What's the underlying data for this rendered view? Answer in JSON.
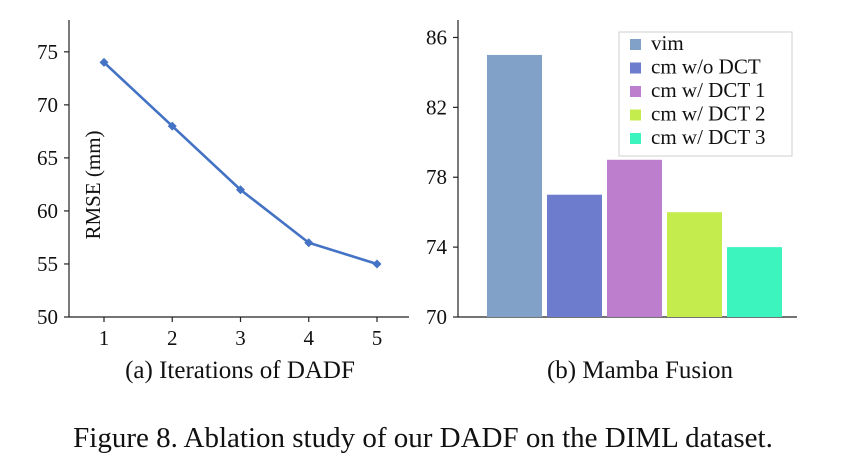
{
  "caption": "Figure 8. Ablation study of our DADF on the DIML dataset.",
  "chart_data": [
    {
      "type": "line",
      "title": "(a) Iterations of DADF",
      "xlabel": "",
      "ylabel": "RMSE (mm)",
      "x": [
        1,
        2,
        3,
        4,
        5
      ],
      "x_tick_labels": [
        "1",
        "2",
        "3",
        "4",
        "5"
      ],
      "y_ticks": [
        50,
        55,
        60,
        65,
        70,
        75
      ],
      "ylim": [
        50,
        78
      ],
      "grid": false,
      "series": [
        {
          "values": [
            74,
            68,
            62,
            57,
            55
          ],
          "color": "#4472c4",
          "marker": "diamond"
        }
      ]
    },
    {
      "type": "bar",
      "title": "(b) Mamba Fusion",
      "xlabel": "",
      "ylabel": "",
      "y_ticks": [
        70,
        74,
        78,
        82,
        86
      ],
      "ylim": [
        70,
        87
      ],
      "grid": false,
      "legend_position": "top-right",
      "categories": [
        "vim",
        "cm w/o DCT",
        "cm w/ DCT 1",
        "cm w/ DCT 2",
        "cm w/ DCT 3"
      ],
      "values": [
        85,
        77,
        79,
        76,
        74
      ],
      "colors": [
        "#81a1c9",
        "#6e7ccd",
        "#bd7fcd",
        "#c4ec4c",
        "#3bf4be"
      ]
    }
  ]
}
